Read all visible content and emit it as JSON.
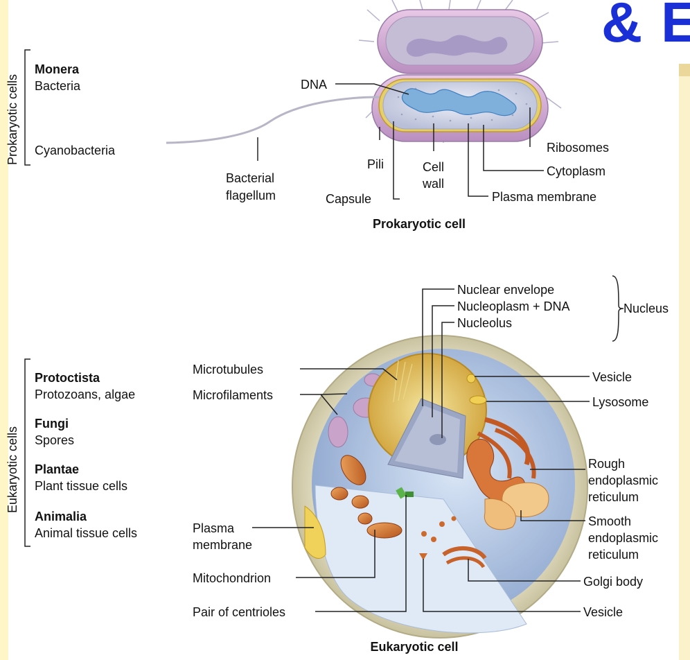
{
  "title_fragment": "& E",
  "colors": {
    "title": "#1a2fd6",
    "side_strip": "#fff6c8",
    "right_panel": "#fbf2cc",
    "right_panel_top": "#ecd79a",
    "label_text": "#111111",
    "leader_line": "#222222"
  },
  "classification": {
    "prokaryotic_group": "Prokaryotic cells",
    "monera_heading": "Monera",
    "monera_items": [
      "Bacteria",
      "Cyanobacteria"
    ],
    "eukaryotic_group": "Eukaryotic cells",
    "kingdoms": [
      {
        "name": "Protoctista",
        "example": "Protozoans, algae"
      },
      {
        "name": "Fungi",
        "example": "Spores"
      },
      {
        "name": "Plantae",
        "example": "Plant tissue cells"
      },
      {
        "name": "Animalia",
        "example": "Animal tissue cells"
      }
    ]
  },
  "prokaryotic": {
    "caption": "Prokaryotic cell",
    "dna": "DNA",
    "flagellum": [
      "Bacterial",
      "flagellum"
    ],
    "pili": "Pili",
    "cell_wall": [
      "Cell",
      "wall"
    ],
    "capsule": "Capsule",
    "ribosomes": "Ribosomes",
    "cytoplasm": "Cytoplasm",
    "plasma_membrane": "Plasma membrane"
  },
  "eukaryotic": {
    "caption": "Eukaryotic cell",
    "nuclear_envelope": "Nuclear envelope",
    "nucleoplasm": "Nucleoplasm + DNA",
    "nucleolus": "Nucleolus",
    "nucleus": "Nucleus",
    "microtubules": "Microtubules",
    "microfilaments": "Microfilaments",
    "plasma_membrane": [
      "Plasma",
      "membrane"
    ],
    "mitochondrion": "Mitochondrion",
    "centrioles": "Pair of centrioles",
    "vesicle_top": "Vesicle",
    "lysosome": "Lysosome",
    "rough_er": [
      "Rough",
      "endoplasmic",
      "reticulum"
    ],
    "smooth_er": [
      "Smooth",
      "endoplasmic",
      "reticulum"
    ],
    "golgi": "Golgi body",
    "vesicle_bottom": "Vesicle"
  }
}
